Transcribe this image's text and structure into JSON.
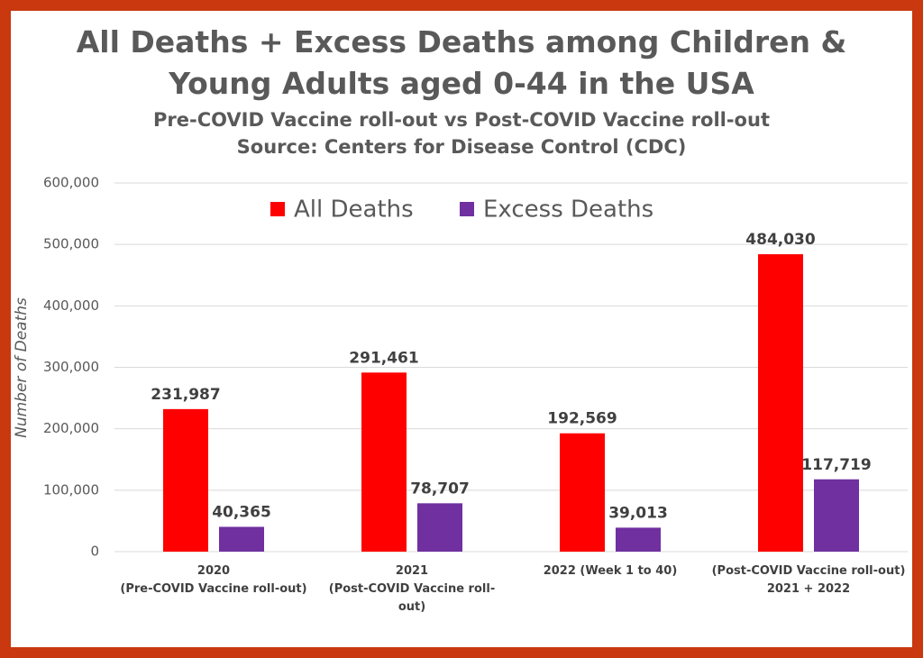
{
  "chart_data": {
    "type": "bar",
    "title": "All Deaths + Excess Deaths among Children &\nYoung Adults aged 0-44 in the USA",
    "subtitle": "Pre-COVID Vaccine roll-out vs Post-COVID Vaccine roll-out",
    "source": "Source: Centers for Disease Control (CDC)",
    "y_label": "Number of Deaths",
    "categories": [
      "2020\n(Pre-COVID Vaccine roll-out)",
      "2021\n(Post-COVID Vaccine roll-\nout)",
      "2022 (Week 1 to 40)",
      "(Post-COVID Vaccine roll-out)\n2021 + 2022"
    ],
    "series": [
      {
        "name": "All Deaths",
        "color": "#ff0000",
        "values": [
          231987,
          291461,
          192569,
          484030
        ],
        "value_labels": [
          "231,987",
          "291,461",
          "192,569",
          "484,030"
        ]
      },
      {
        "name": "Excess Deaths",
        "color": "#7030a0",
        "values": [
          40365,
          78707,
          39013,
          117719
        ],
        "value_labels": [
          "40,365",
          "78,707",
          "39,013",
          "117,719"
        ]
      }
    ],
    "ylim": [
      0,
      600000
    ],
    "yticks": [
      {
        "value": 0,
        "label": "0"
      },
      {
        "value": 100000,
        "label": "100,000"
      },
      {
        "value": 200000,
        "label": "200,000"
      },
      {
        "value": 300000,
        "label": "300,000"
      },
      {
        "value": 400000,
        "label": "400,000"
      },
      {
        "value": 500000,
        "label": "500,000"
      },
      {
        "value": 600000,
        "label": "600,000"
      }
    ],
    "grid": true,
    "legend": "top"
  }
}
